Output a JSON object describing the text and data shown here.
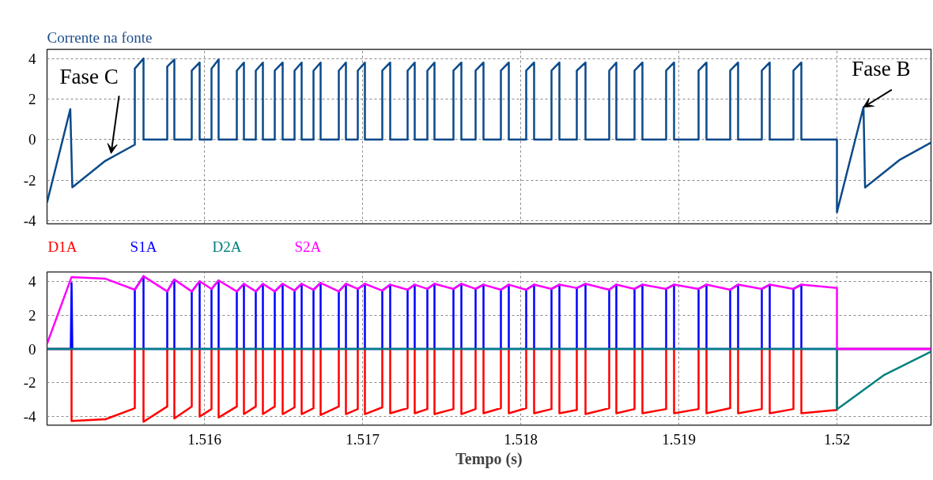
{
  "chart_data": [
    {
      "type": "line",
      "title": "Corrente na fonte",
      "xlim": [
        1.515005,
        1.520595
      ],
      "ylim": [
        -4.15,
        4.45
      ],
      "xticks": [
        1.516,
        1.517,
        1.518,
        1.519,
        1.52
      ],
      "yticks": [
        -4,
        -2,
        0,
        2,
        4
      ],
      "grid": true,
      "tick_labels": "y",
      "annotations": [
        {
          "text": "Fase C",
          "x": 1.51541,
          "y": -0.68
        },
        {
          "text": "Fase B",
          "x": 1.520168,
          "y": 1.6
        }
      ],
      "series": [
        {
          "color": "#0b4a8a",
          "x": [
            1.515005,
            1.515152,
            1.515165,
            1.515373,
            1.51556,
            1.51556,
            1.515615,
            1.515615,
            1.515765,
            1.515765,
            1.51581,
            1.51581,
            1.51592,
            1.51592,
            1.51597,
            1.51597,
            1.516045,
            1.516045,
            1.51609,
            1.51609,
            1.516205,
            1.516205,
            1.51625,
            1.51625,
            1.516325,
            1.516325,
            1.51637,
            1.51637,
            1.516445,
            1.516445,
            1.516495,
            1.516495,
            1.51657,
            1.51657,
            1.516615,
            1.516615,
            1.51669,
            1.51669,
            1.516735,
            1.516735,
            1.51685,
            1.51685,
            1.516895,
            1.516895,
            1.51697,
            1.51697,
            1.517015,
            1.517015,
            1.517125,
            1.517125,
            1.517175,
            1.517175,
            1.517285,
            1.517285,
            1.51733,
            1.51733,
            1.51741,
            1.51741,
            1.517455,
            1.517455,
            1.517575,
            1.517575,
            1.517625,
            1.517625,
            1.517715,
            1.517715,
            1.517765,
            1.517765,
            1.517875,
            1.517875,
            1.517925,
            1.517925,
            1.518035,
            1.518035,
            1.518085,
            1.518085,
            1.518195,
            1.518195,
            1.518245,
            1.518245,
            1.518355,
            1.518355,
            1.51841,
            1.51841,
            1.51856,
            1.51856,
            1.518605,
            1.518605,
            1.51872,
            1.51872,
            1.51877,
            1.51877,
            1.51892,
            1.51892,
            1.51897,
            1.51897,
            1.519125,
            1.519125,
            1.519175,
            1.519175,
            1.519325,
            1.519325,
            1.519375,
            1.519375,
            1.519525,
            1.519525,
            1.519575,
            1.519575,
            1.519725,
            1.519725,
            1.519775,
            1.519775,
            1.52,
            1.52,
            1.520168,
            1.520178,
            1.5204,
            1.520595
          ],
          "values": [
            -3.1,
            1.5,
            -2.35,
            -1.05,
            -0.25,
            3.5,
            4.0,
            0,
            0,
            3.6,
            3.95,
            0,
            0,
            3.4,
            3.8,
            0,
            0,
            3.5,
            3.95,
            0,
            0,
            3.4,
            3.8,
            0,
            0,
            3.4,
            3.8,
            0,
            0,
            3.4,
            3.8,
            0,
            0,
            3.4,
            3.8,
            0,
            0,
            3.4,
            3.8,
            0,
            0,
            3.4,
            3.8,
            0,
            0,
            3.4,
            3.8,
            0,
            0,
            3.4,
            3.8,
            0,
            0,
            3.4,
            3.8,
            0,
            0,
            3.4,
            3.8,
            0,
            0,
            3.4,
            3.8,
            0,
            0,
            3.4,
            3.8,
            0,
            0,
            3.4,
            3.8,
            0,
            0,
            3.4,
            3.8,
            0,
            0,
            3.4,
            3.8,
            0,
            0,
            3.4,
            3.8,
            0,
            0,
            3.4,
            3.8,
            0,
            0,
            3.4,
            3.8,
            0,
            0,
            3.4,
            3.8,
            0,
            0,
            3.4,
            3.8,
            0,
            0,
            3.4,
            3.8,
            0,
            0,
            3.4,
            3.8,
            0,
            0,
            3.4,
            3.8,
            0,
            0,
            -3.58,
            1.6,
            -2.36,
            -0.98,
            -0.15
          ]
        }
      ]
    },
    {
      "type": "line",
      "xlabel": "Tempo (s)",
      "xlim": [
        1.515005,
        1.520595
      ],
      "ylim": [
        -4.5,
        4.55
      ],
      "xticks": [
        1.516,
        1.517,
        1.518,
        1.519,
        1.52
      ],
      "yticks": [
        -4,
        -2,
        0,
        2,
        4
      ],
      "grid": true,
      "series": [
        {
          "name": "D1A",
          "color": "#ff0000",
          "x": [
            1.515005,
            1.51516,
            1.51516,
            1.515375,
            1.51556,
            1.51556,
            1.515615,
            1.515615,
            1.515765,
            1.515765,
            1.51581,
            1.51581,
            1.51592,
            1.51592,
            1.51597,
            1.51597,
            1.516045,
            1.516045,
            1.51609,
            1.51609,
            1.516205,
            1.516205,
            1.51625,
            1.51625,
            1.516325,
            1.516325,
            1.51637,
            1.51637,
            1.516445,
            1.516445,
            1.516495,
            1.516495,
            1.51657,
            1.51657,
            1.516615,
            1.516615,
            1.51669,
            1.51669,
            1.516735,
            1.516735,
            1.51685,
            1.51685,
            1.516895,
            1.516895,
            1.51697,
            1.51697,
            1.517015,
            1.517015,
            1.517125,
            1.517125,
            1.517175,
            1.517175,
            1.517285,
            1.517285,
            1.51733,
            1.51733,
            1.51741,
            1.51741,
            1.517455,
            1.517455,
            1.517575,
            1.517575,
            1.517625,
            1.517625,
            1.517715,
            1.517715,
            1.517765,
            1.517765,
            1.517875,
            1.517875,
            1.517925,
            1.517925,
            1.518035,
            1.518035,
            1.518085,
            1.518085,
            1.518195,
            1.518195,
            1.518245,
            1.518245,
            1.518355,
            1.518355,
            1.51841,
            1.51841,
            1.51856,
            1.51856,
            1.518605,
            1.518605,
            1.51872,
            1.51872,
            1.51877,
            1.51877,
            1.51892,
            1.51892,
            1.51897,
            1.51897,
            1.519125,
            1.519125,
            1.519175,
            1.519175,
            1.519325,
            1.519325,
            1.519375,
            1.519375,
            1.519525,
            1.519525,
            1.519575,
            1.519575,
            1.519725,
            1.519725,
            1.519775,
            1.519775,
            1.52,
            1.52,
            1.520595
          ],
          "values": [
            0,
            0,
            -4.25,
            -4.15,
            -3.5,
            0,
            0,
            -4.3,
            -3.4,
            0,
            0,
            -4.1,
            -3.4,
            0,
            0,
            -4.0,
            -3.55,
            0,
            0,
            -4.05,
            -3.4,
            0,
            0,
            -3.85,
            -3.4,
            0,
            0,
            -3.85,
            -3.4,
            0,
            0,
            -3.85,
            -3.45,
            0,
            0,
            -3.85,
            -3.5,
            0,
            0,
            -3.9,
            -3.4,
            0,
            0,
            -3.85,
            -3.55,
            0,
            0,
            -3.85,
            -3.45,
            0,
            0,
            -3.8,
            -3.5,
            0,
            0,
            -3.8,
            -3.55,
            0,
            0,
            -3.85,
            -3.55,
            0,
            0,
            -3.85,
            -3.55,
            0,
            0,
            -3.8,
            -3.5,
            0,
            0,
            -3.8,
            -3.5,
            0,
            0,
            -3.8,
            -3.55,
            0,
            0,
            -3.8,
            -3.6,
            0,
            0,
            -3.85,
            -3.5,
            0,
            0,
            -3.8,
            -3.55,
            0,
            0,
            -3.8,
            -3.55,
            0,
            0,
            -3.8,
            -3.55,
            0,
            0,
            -3.8,
            -3.5,
            0,
            0,
            -3.8,
            -3.55,
            0,
            0,
            -3.8,
            -3.55,
            0,
            0,
            -3.8,
            -3.6,
            0,
            0
          ]
        },
        {
          "name": "S1A",
          "color": "#0000ff",
          "x": [
            1.515005,
            1.515155,
            1.51516,
            1.515165,
            1.51556,
            1.51556,
            1.515615,
            1.515615,
            1.515765,
            1.515765,
            1.51581,
            1.51581,
            1.51592,
            1.51592,
            1.51597,
            1.51597,
            1.516045,
            1.516045,
            1.51609,
            1.51609,
            1.516205,
            1.516205,
            1.51625,
            1.51625,
            1.516325,
            1.516325,
            1.51637,
            1.51637,
            1.516445,
            1.516445,
            1.516495,
            1.516495,
            1.51657,
            1.51657,
            1.516615,
            1.516615,
            1.51669,
            1.51669,
            1.516735,
            1.516735,
            1.51685,
            1.51685,
            1.516895,
            1.516895,
            1.51697,
            1.51697,
            1.517015,
            1.517015,
            1.517125,
            1.517125,
            1.517175,
            1.517175,
            1.517285,
            1.517285,
            1.51733,
            1.51733,
            1.51741,
            1.51741,
            1.517455,
            1.517455,
            1.517575,
            1.517575,
            1.517625,
            1.517625,
            1.517715,
            1.517715,
            1.517765,
            1.517765,
            1.517875,
            1.517875,
            1.517925,
            1.517925,
            1.518035,
            1.518035,
            1.518085,
            1.518085,
            1.518195,
            1.518195,
            1.518245,
            1.518245,
            1.518355,
            1.518355,
            1.51841,
            1.51841,
            1.51856,
            1.51856,
            1.518605,
            1.518605,
            1.51872,
            1.51872,
            1.51877,
            1.51877,
            1.51892,
            1.51892,
            1.51897,
            1.51897,
            1.519125,
            1.519125,
            1.519175,
            1.519175,
            1.519325,
            1.519325,
            1.519375,
            1.519375,
            1.519525,
            1.519525,
            1.519575,
            1.519575,
            1.519725,
            1.519725,
            1.519775,
            1.519775,
            1.520595
          ],
          "values": [
            0,
            0,
            3.9,
            0,
            0,
            3.5,
            4.3,
            0,
            0,
            3.4,
            4.1,
            0,
            0,
            3.4,
            4.0,
            0,
            0,
            3.55,
            4.05,
            0,
            0,
            3.4,
            3.85,
            0,
            0,
            3.4,
            3.85,
            0,
            0,
            3.4,
            3.85,
            0,
            0,
            3.45,
            3.85,
            0,
            0,
            3.5,
            3.9,
            0,
            0,
            3.4,
            3.85,
            0,
            0,
            3.55,
            3.85,
            0,
            0,
            3.45,
            3.8,
            0,
            0,
            3.5,
            3.8,
            0,
            0,
            3.55,
            3.85,
            0,
            0,
            3.55,
            3.85,
            0,
            0,
            3.55,
            3.8,
            0,
            0,
            3.5,
            3.8,
            0,
            0,
            3.5,
            3.8,
            0,
            0,
            3.55,
            3.8,
            0,
            0,
            3.6,
            3.85,
            0,
            0,
            3.5,
            3.8,
            0,
            0,
            3.55,
            3.8,
            0,
            0,
            3.55,
            3.8,
            0,
            0,
            3.55,
            3.8,
            0,
            0,
            3.5,
            3.8,
            0,
            0,
            3.55,
            3.8,
            0,
            0,
            3.55,
            3.8,
            0,
            0
          ]
        },
        {
          "name": "D2A",
          "color": "#008080",
          "x": [
            1.515005,
            1.52,
            1.52,
            1.5203,
            1.520595
          ],
          "values": [
            0,
            0,
            -3.57,
            -1.53,
            -0.15
          ]
        },
        {
          "name": "S2A",
          "color": "#ff00ff",
          "x": [
            1.515005,
            1.51516,
            1.515375,
            1.51556,
            1.515615,
            1.515765,
            1.51581,
            1.51592,
            1.51597,
            1.516045,
            1.51609,
            1.516205,
            1.51625,
            1.516325,
            1.51637,
            1.516445,
            1.516495,
            1.51657,
            1.516615,
            1.51669,
            1.516735,
            1.51685,
            1.516895,
            1.51697,
            1.517015,
            1.517125,
            1.517175,
            1.517285,
            1.51733,
            1.51741,
            1.517455,
            1.517575,
            1.517625,
            1.517715,
            1.517765,
            1.517875,
            1.517925,
            1.518035,
            1.518085,
            1.518195,
            1.518245,
            1.518355,
            1.51841,
            1.51856,
            1.518605,
            1.51872,
            1.51877,
            1.51892,
            1.51897,
            1.519125,
            1.519175,
            1.519325,
            1.519375,
            1.519525,
            1.519575,
            1.519725,
            1.519775,
            1.52,
            1.52,
            1.520595
          ],
          "values": [
            0.3,
            4.25,
            4.15,
            3.5,
            4.3,
            3.4,
            4.1,
            3.4,
            4.0,
            3.55,
            4.05,
            3.4,
            3.85,
            3.4,
            3.85,
            3.4,
            3.85,
            3.45,
            3.85,
            3.5,
            3.9,
            3.4,
            3.85,
            3.55,
            3.85,
            3.45,
            3.8,
            3.5,
            3.8,
            3.55,
            3.85,
            3.55,
            3.85,
            3.55,
            3.8,
            3.5,
            3.8,
            3.5,
            3.8,
            3.55,
            3.8,
            3.6,
            3.85,
            3.5,
            3.8,
            3.55,
            3.8,
            3.55,
            3.8,
            3.55,
            3.8,
            3.5,
            3.8,
            3.55,
            3.8,
            3.55,
            3.8,
            3.6,
            0,
            0
          ]
        }
      ]
    }
  ]
}
